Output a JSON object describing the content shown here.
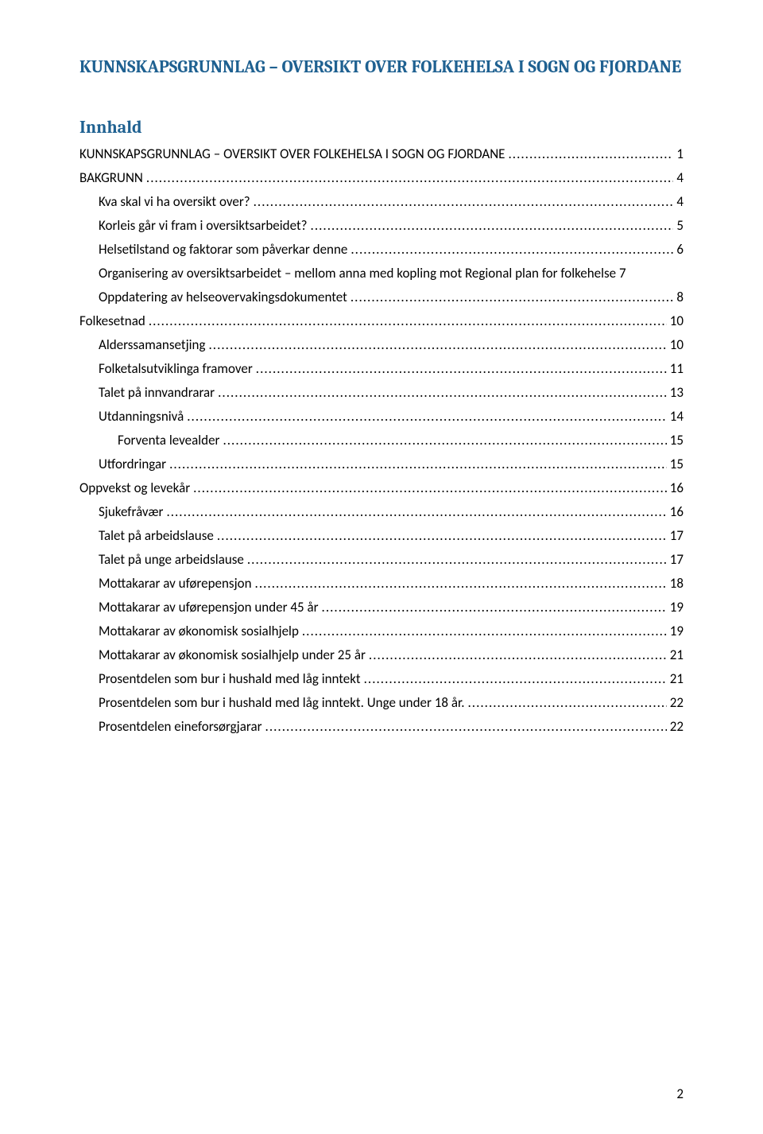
{
  "document": {
    "title": "KUNNSKAPSGRUNNLAG – OVERSIKT OVER FOLKEHELSA I SOGN OG FJORDANE",
    "toc_heading": "Innhald",
    "footer_page_number": "2"
  },
  "colors": {
    "heading_color": "#1f6191",
    "body_text": "#000000",
    "background": "#ffffff"
  },
  "typography": {
    "title_font": "Cambria",
    "title_fontsize": 22,
    "title_weight": "bold",
    "body_font": "Calibri",
    "body_fontsize": 17,
    "line_spacing": 9
  },
  "toc": [
    {
      "indent": 0,
      "label": "KUNNSKAPSGRUNNLAG – OVERSIKT OVER FOLKEHELSA I SOGN OG FJORDANE",
      "page": "1"
    },
    {
      "indent": 0,
      "label": "BAKGRUNN",
      "page": "4"
    },
    {
      "indent": 1,
      "label": "Kva skal vi ha oversikt over?",
      "page": "4"
    },
    {
      "indent": 1,
      "label": "Korleis går vi fram i oversiktsarbeidet?",
      "page": "5"
    },
    {
      "indent": 1,
      "label": "Helsetilstand og faktorar som påverkar denne",
      "page": "6"
    },
    {
      "indent": 1,
      "label": "Organisering av oversiktsarbeidet – mellom anna med kopling mot Regional plan for folkehelse 7",
      "page": ""
    },
    {
      "indent": 1,
      "label": "Oppdatering av helseovervakingsdokumentet",
      "page": "8"
    },
    {
      "indent": 0,
      "label": "Folkesetnad",
      "page": "10"
    },
    {
      "indent": 1,
      "label": "Alderssamansetjing",
      "page": "10"
    },
    {
      "indent": 1,
      "label": "Folketalsutviklinga framover",
      "page": "11"
    },
    {
      "indent": 1,
      "label": "Talet på innvandrarar",
      "page": "13"
    },
    {
      "indent": 1,
      "label": "Utdanningsnivå",
      "page": "14"
    },
    {
      "indent": 2,
      "label": "Forventa levealder",
      "page": "15"
    },
    {
      "indent": 1,
      "label": "Utfordringar",
      "page": "15"
    },
    {
      "indent": 0,
      "label": "Oppvekst og levekår",
      "page": "16"
    },
    {
      "indent": 1,
      "label": "Sjukefråvær",
      "page": "16"
    },
    {
      "indent": 1,
      "label": "Talet på arbeidslause",
      "page": "17"
    },
    {
      "indent": 1,
      "label": "Talet på unge arbeidslause",
      "page": "17"
    },
    {
      "indent": 1,
      "label": "Mottakarar av uførepensjon",
      "page": "18"
    },
    {
      "indent": 1,
      "label": "Mottakarar av uførepensjon under 45 år",
      "page": "19"
    },
    {
      "indent": 1,
      "label": "Mottakarar av økonomisk sosialhjelp",
      "page": "19"
    },
    {
      "indent": 1,
      "label": "Mottakarar av økonomisk sosialhjelp under 25 år",
      "page": "21"
    },
    {
      "indent": 1,
      "label": "Prosentdelen som bur i hushald med låg inntekt",
      "page": "21"
    },
    {
      "indent": 1,
      "label": "Prosentdelen som bur i hushald med låg inntekt. Unge under 18 år.",
      "page": "22"
    },
    {
      "indent": 1,
      "label": "Prosentdelen eineforsørgjarar",
      "page": "22"
    }
  ]
}
